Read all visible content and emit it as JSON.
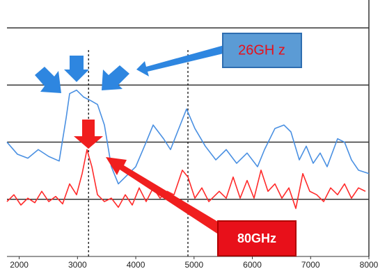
{
  "chart_data": {
    "type": "line",
    "annotations": [
      "26GH z",
      "80GHz"
    ],
    "xlim": [
      1790,
      8000
    ],
    "xticks": [
      2000,
      3000,
      4000,
      5000,
      6000,
      7000,
      8000
    ],
    "ylim": [
      0,
      4.5
    ],
    "yticks": [
      1,
      2,
      3,
      4
    ],
    "grid": true,
    "vlines": [
      3190,
      4895
    ],
    "series": [
      {
        "color": "#4a90e2",
        "x": [
          1790,
          1969,
          2148,
          2327,
          2507,
          2686,
          2805,
          2865,
          2984,
          3104,
          3223,
          3343,
          3462,
          3581,
          3701,
          3820,
          3999,
          4178,
          4298,
          4477,
          4596,
          4716,
          4871,
          5014,
          5193,
          5373,
          5552,
          5731,
          5910,
          6089,
          6209,
          6388,
          6543,
          6662,
          6806,
          6925,
          7044,
          7164,
          7283,
          7462,
          7582,
          7701,
          7821,
          8000
        ],
        "values": [
          2.0,
          1.79,
          1.72,
          1.87,
          1.75,
          1.67,
          2.42,
          2.85,
          2.91,
          2.79,
          2.73,
          2.66,
          2.3,
          1.57,
          1.27,
          1.39,
          1.57,
          2.0,
          2.3,
          2.06,
          1.87,
          2.18,
          2.58,
          2.24,
          1.93,
          1.69,
          1.87,
          1.63,
          1.81,
          1.57,
          1.87,
          2.24,
          2.3,
          2.18,
          1.69,
          1.93,
          1.63,
          1.81,
          1.57,
          2.06,
          2.0,
          1.69,
          1.51,
          1.45
        ]
      },
      {
        "color": "#ff2a2a",
        "x": [
          1790,
          1909,
          2029,
          2148,
          2268,
          2387,
          2507,
          2626,
          2745,
          2865,
          2984,
          3080,
          3163,
          3247,
          3343,
          3462,
          3581,
          3701,
          3820,
          3940,
          4059,
          4178,
          4298,
          4417,
          4537,
          4656,
          4799,
          4895,
          5014,
          5134,
          5253,
          5432,
          5552,
          5671,
          5791,
          5910,
          6029,
          6149,
          6268,
          6388,
          6507,
          6627,
          6746,
          6866,
          6985,
          7104,
          7224,
          7343,
          7462,
          7582,
          7701,
          7821,
          7940
        ],
        "values": [
          0.96,
          1.08,
          0.9,
          1.02,
          0.94,
          1.14,
          0.96,
          1.05,
          0.92,
          1.27,
          1.08,
          1.45,
          1.87,
          1.57,
          1.08,
          0.96,
          1.02,
          0.86,
          1.08,
          0.9,
          1.2,
          0.96,
          1.2,
          1.02,
          1.14,
          1.08,
          1.51,
          1.39,
          1.02,
          1.2,
          0.96,
          1.14,
          1.02,
          1.39,
          1.02,
          1.33,
          1.02,
          1.51,
          1.14,
          1.27,
          1.02,
          1.2,
          0.84,
          1.45,
          1.14,
          1.08,
          0.96,
          1.2,
          1.08,
          1.27,
          1.02,
          1.2,
          1.14
        ]
      }
    ]
  }
}
